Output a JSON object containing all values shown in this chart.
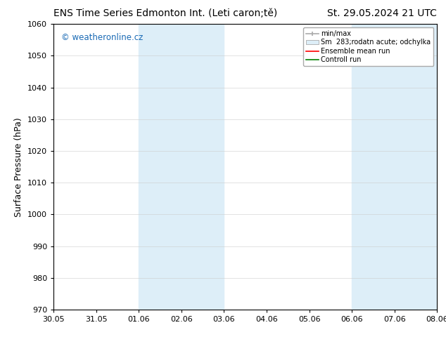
{
  "title_left": "ENS Time Series Edmonton Int. (Leti caron;tě)",
  "title_right": "St. 29.05.2024 21 UTC",
  "ylabel": "Surface Pressure (hPa)",
  "ylim": [
    970,
    1060
  ],
  "yticks": [
    970,
    980,
    990,
    1000,
    1010,
    1020,
    1030,
    1040,
    1050,
    1060
  ],
  "xtick_labels": [
    "30.05",
    "31.05",
    "01.06",
    "02.06",
    "03.06",
    "04.06",
    "05.06",
    "06.06",
    "07.06",
    "08.06"
  ],
  "xtick_positions": [
    0,
    1,
    2,
    3,
    4,
    5,
    6,
    7,
    8,
    9
  ],
  "shaded_regions": [
    {
      "x_start": 2,
      "x_end": 4,
      "color": "#ddeef8"
    },
    {
      "x_start": 7,
      "x_end": 9,
      "color": "#ddeef8"
    }
  ],
  "legend_labels": [
    "min/max",
    "Sm  283;rodatn acute; odchylka",
    "Ensemble mean run",
    "Controll run"
  ],
  "watermark_text": "© weatheronline.cz",
  "watermark_color": "#1a6ab5",
  "bg_color": "#ffffff",
  "plot_bg_color": "#ffffff",
  "border_color": "#000000",
  "tick_color": "#000000",
  "label_color": "#000000",
  "title_fontsize": 10,
  "tick_fontsize": 8,
  "ylabel_fontsize": 9
}
